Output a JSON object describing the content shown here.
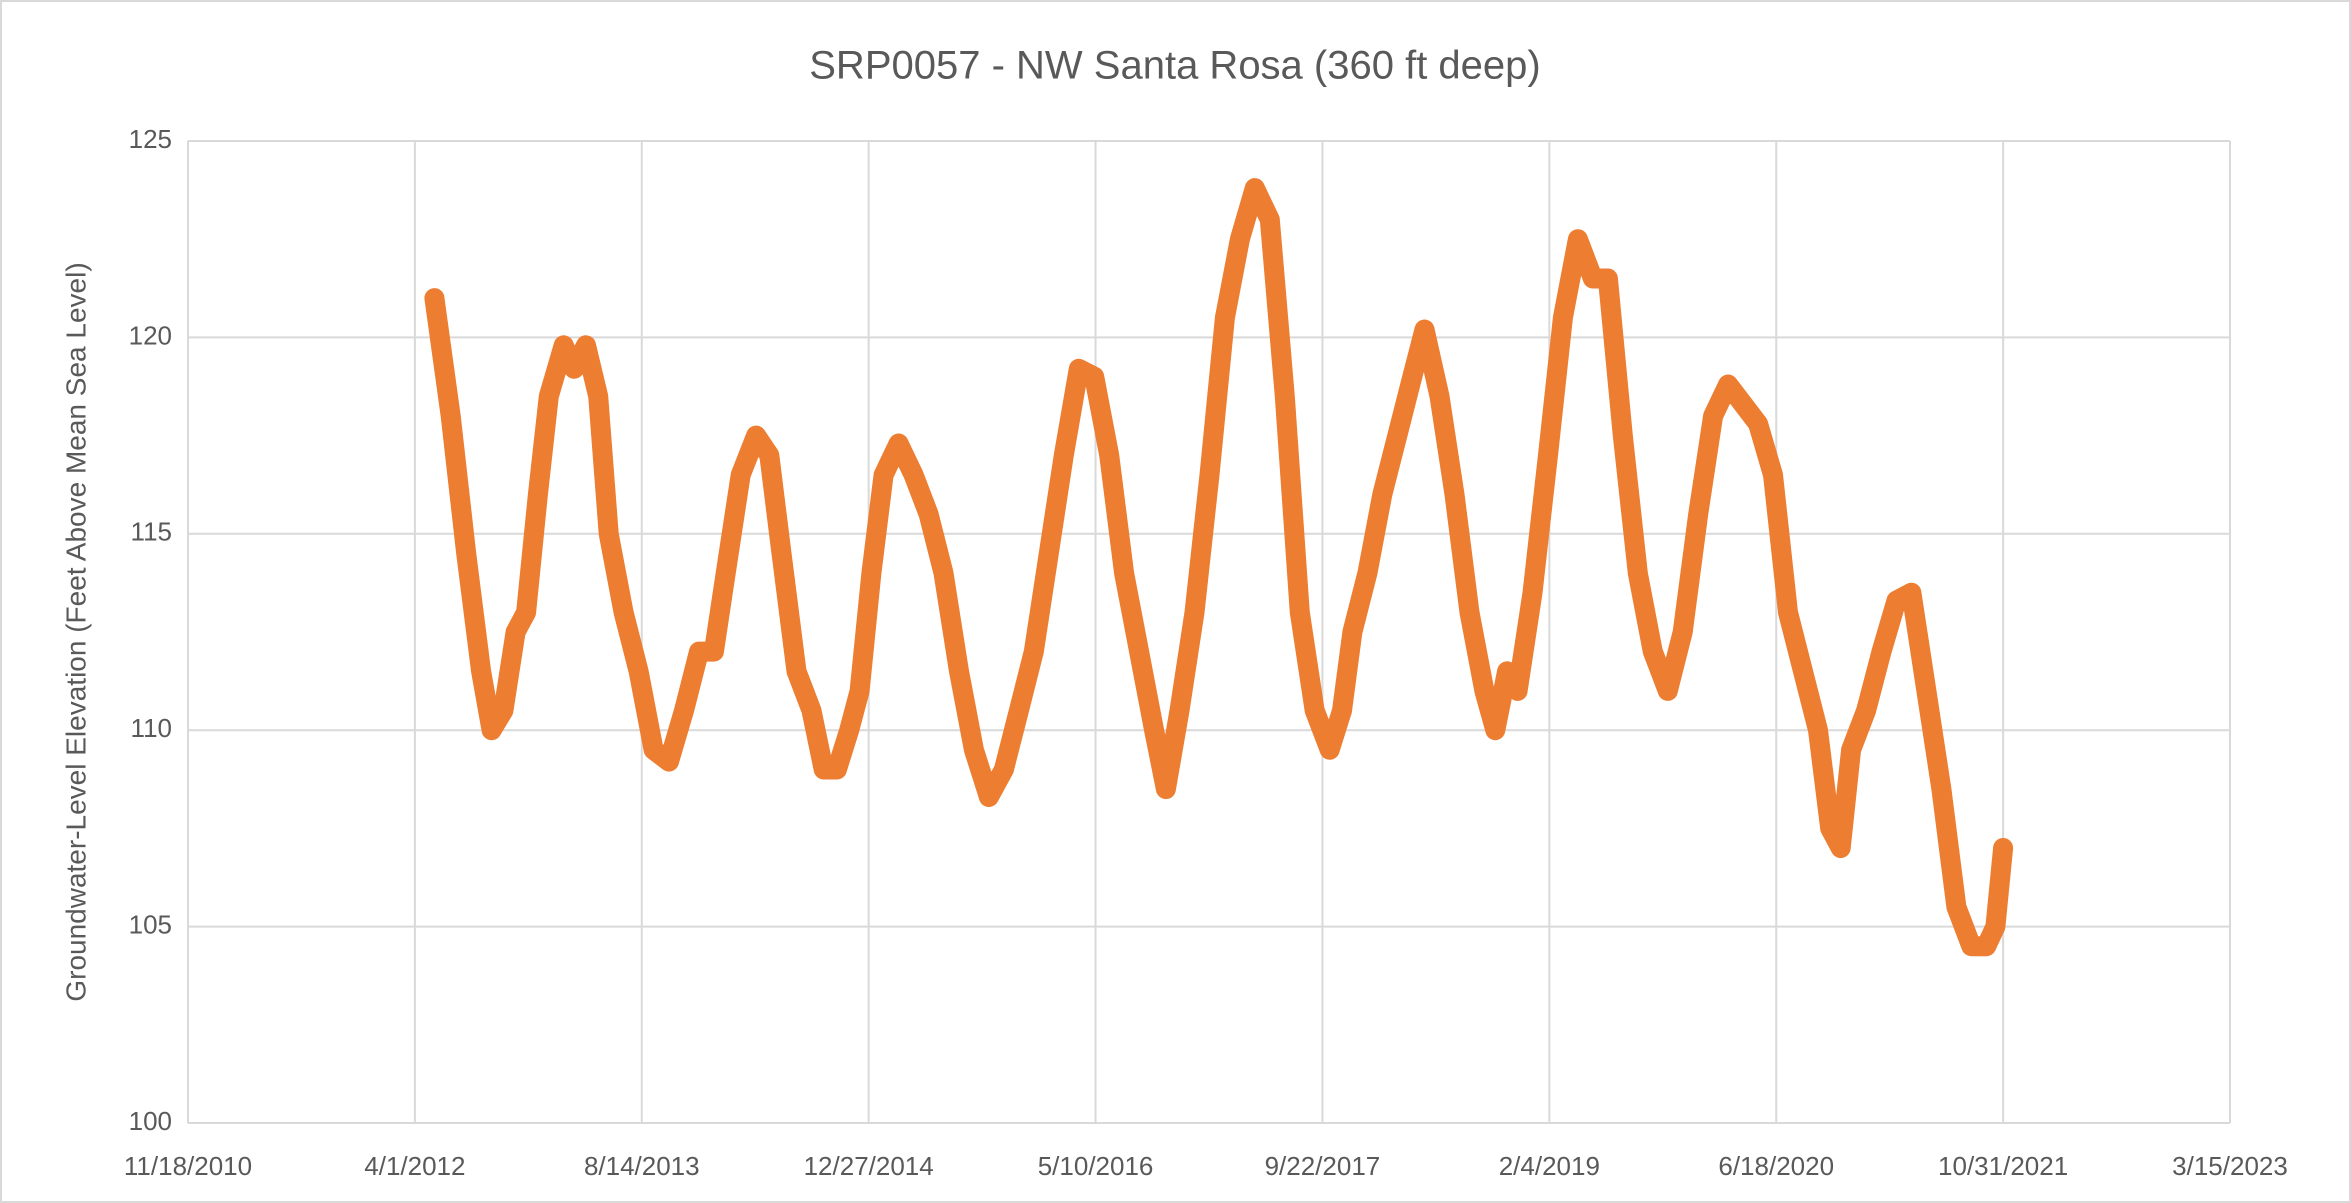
{
  "chart_data": {
    "type": "line",
    "title": "SRP0057 - NW Santa Rosa (360 ft deep)",
    "y_label": "Groundwater-Level Elevation (Feet Above Mean Sea Level)",
    "x": [
      "2012-05-14",
      "2012-06-19",
      "2012-07-23",
      "2012-08-25",
      "2012-09-17",
      "2012-10-13",
      "2012-11-09",
      "2012-12-02",
      "2012-12-28",
      "2013-01-21",
      "2013-02-23",
      "2013-03-18",
      "2013-04-13",
      "2013-05-10",
      "2013-06-02",
      "2013-07-05",
      "2013-08-07",
      "2013-09-09",
      "2013-10-13",
      "2013-11-15",
      "2013-12-18",
      "2014-01-20",
      "2014-02-15",
      "2014-03-20",
      "2014-04-23",
      "2014-05-22",
      "2014-06-18",
      "2014-07-21",
      "2014-08-23",
      "2014-09-19",
      "2014-10-18",
      "2014-11-14",
      "2014-12-07",
      "2015-01-02",
      "2015-01-29",
      "2015-03-03",
      "2015-04-05",
      "2015-05-08",
      "2015-06-10",
      "2015-07-14",
      "2015-08-16",
      "2015-09-18",
      "2015-10-21",
      "2015-11-23",
      "2015-12-26",
      "2016-01-28",
      "2016-03-01",
      "2016-04-03",
      "2016-05-07",
      "2016-06-09",
      "2016-07-12",
      "2016-08-14",
      "2016-09-16",
      "2016-10-12",
      "2016-11-11",
      "2016-12-14",
      "2017-01-16",
      "2017-02-19",
      "2017-03-24",
      "2017-04-26",
      "2017-05-29",
      "2017-07-01",
      "2017-08-03",
      "2017-09-05",
      "2017-10-08",
      "2017-11-04",
      "2017-11-27",
      "2017-12-30",
      "2018-02-01",
      "2018-03-06",
      "2018-04-08",
      "2018-05-05",
      "2018-06-07",
      "2018-07-10",
      "2018-08-12",
      "2018-09-14",
      "2018-10-08",
      "2018-11-03",
      "2018-11-26",
      "2018-12-29",
      "2019-02-01",
      "2019-03-06",
      "2019-04-08",
      "2019-05-11",
      "2019-06-13",
      "2019-07-16",
      "2019-08-18",
      "2019-09-20",
      "2019-10-23",
      "2019-11-25",
      "2019-12-29",
      "2020-01-31",
      "2020-03-04",
      "2020-04-06",
      "2020-05-09",
      "2020-06-11",
      "2020-07-14",
      "2020-08-16",
      "2020-09-18",
      "2020-10-15",
      "2020-11-07",
      "2020-11-30",
      "2021-01-02",
      "2021-02-05",
      "2021-03-10",
      "2021-04-12",
      "2021-05-15",
      "2021-06-17",
      "2021-07-20",
      "2021-08-22",
      "2021-09-24",
      "2021-10-14",
      "2021-10-31"
    ],
    "series": [
      {
        "color": "#ed7d31",
        "values": [
          121.0,
          118,
          114.5,
          111.5,
          110,
          110.5,
          112.5,
          113,
          116,
          118.5,
          119.8,
          119.2,
          119.8,
          118.5,
          115,
          113,
          111.5,
          109.5,
          109.2,
          110.5,
          112,
          112,
          114,
          116.5,
          117.5,
          117,
          114.5,
          111.5,
          110.5,
          109,
          109,
          110,
          111,
          114,
          116.5,
          117.3,
          116.5,
          115.5,
          114,
          111.5,
          109.5,
          108.3,
          109,
          110.5,
          112,
          114.5,
          117,
          119.2,
          119,
          117,
          114,
          112,
          110,
          108.5,
          110.5,
          113,
          116.5,
          120.5,
          122.5,
          123.8,
          123,
          118.5,
          113,
          110.5,
          109.5,
          110.5,
          112.5,
          114,
          116,
          117.5,
          119,
          120.2,
          118.5,
          116,
          113,
          111,
          110,
          111.5,
          111,
          113.5,
          117,
          120.5,
          122.5,
          121.5,
          121.5,
          117.5,
          114,
          112,
          111,
          112.5,
          115.5,
          118,
          118.8,
          118.3,
          117.8,
          116.5,
          113,
          111.5,
          110,
          107.5,
          107,
          109.5,
          110.5,
          112,
          113.3,
          113.5,
          111,
          108.5,
          105.5,
          104.5,
          104.5,
          105,
          107
        ]
      }
    ],
    "xlim": [
      "2010-11-18",
      "2023-03-15"
    ],
    "xticks": [
      {
        "value": "2010-11-18",
        "label": "11/18/2010"
      },
      {
        "value": "2012-04-01",
        "label": "4/1/2012"
      },
      {
        "value": "2013-08-14",
        "label": "8/14/2013"
      },
      {
        "value": "2014-12-27",
        "label": "12/27/2014"
      },
      {
        "value": "2016-05-10",
        "label": "5/10/2016"
      },
      {
        "value": "2017-09-22",
        "label": "9/22/2017"
      },
      {
        "value": "2019-02-04",
        "label": "2/4/2019"
      },
      {
        "value": "2020-06-18",
        "label": "6/18/2020"
      },
      {
        "value": "2021-10-31",
        "label": "10/31/2021"
      },
      {
        "value": "2023-03-15",
        "label": "3/15/2023"
      }
    ],
    "ylim": [
      100,
      125
    ],
    "yticks": [
      100,
      105,
      110,
      115,
      120,
      125
    ],
    "grid": true
  }
}
